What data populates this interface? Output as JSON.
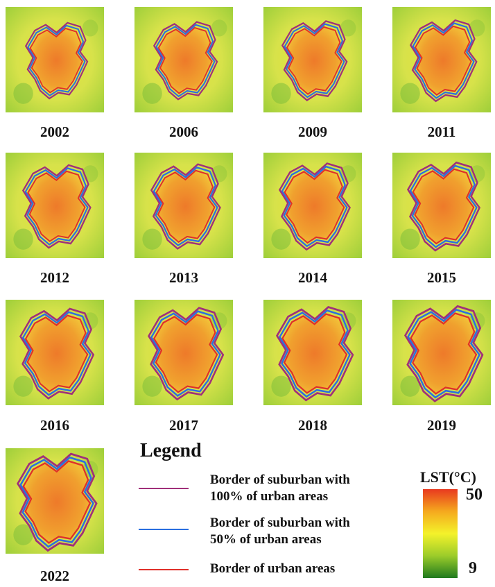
{
  "figure": {
    "panels": [
      {
        "year": "2002"
      },
      {
        "year": "2006"
      },
      {
        "year": "2009"
      },
      {
        "year": "2011"
      },
      {
        "year": "2012"
      },
      {
        "year": "2013"
      },
      {
        "year": "2014"
      },
      {
        "year": "2015"
      },
      {
        "year": "2016"
      },
      {
        "year": "2017"
      },
      {
        "year": "2018"
      },
      {
        "year": "2019"
      },
      {
        "year": "2022"
      }
    ]
  },
  "legend": {
    "title": "Legend",
    "items": [
      {
        "label_line1": "Border of suburban with",
        "label_line2": "100% of urban areas",
        "color": "#a0307a"
      },
      {
        "label_line1": "Border of suburban with",
        "label_line2": "50% of urban areas",
        "color": "#2a6fe0"
      },
      {
        "label_line1": "Border of urban areas",
        "label_line2": "",
        "color": "#e0302a"
      }
    ]
  },
  "colorbar": {
    "title": "LST(°C)",
    "max": "50",
    "min": "9",
    "colors": [
      "#e8391f",
      "#f5a91e",
      "#f4f22a",
      "#9ccc2a",
      "#1f7a1e"
    ]
  }
}
